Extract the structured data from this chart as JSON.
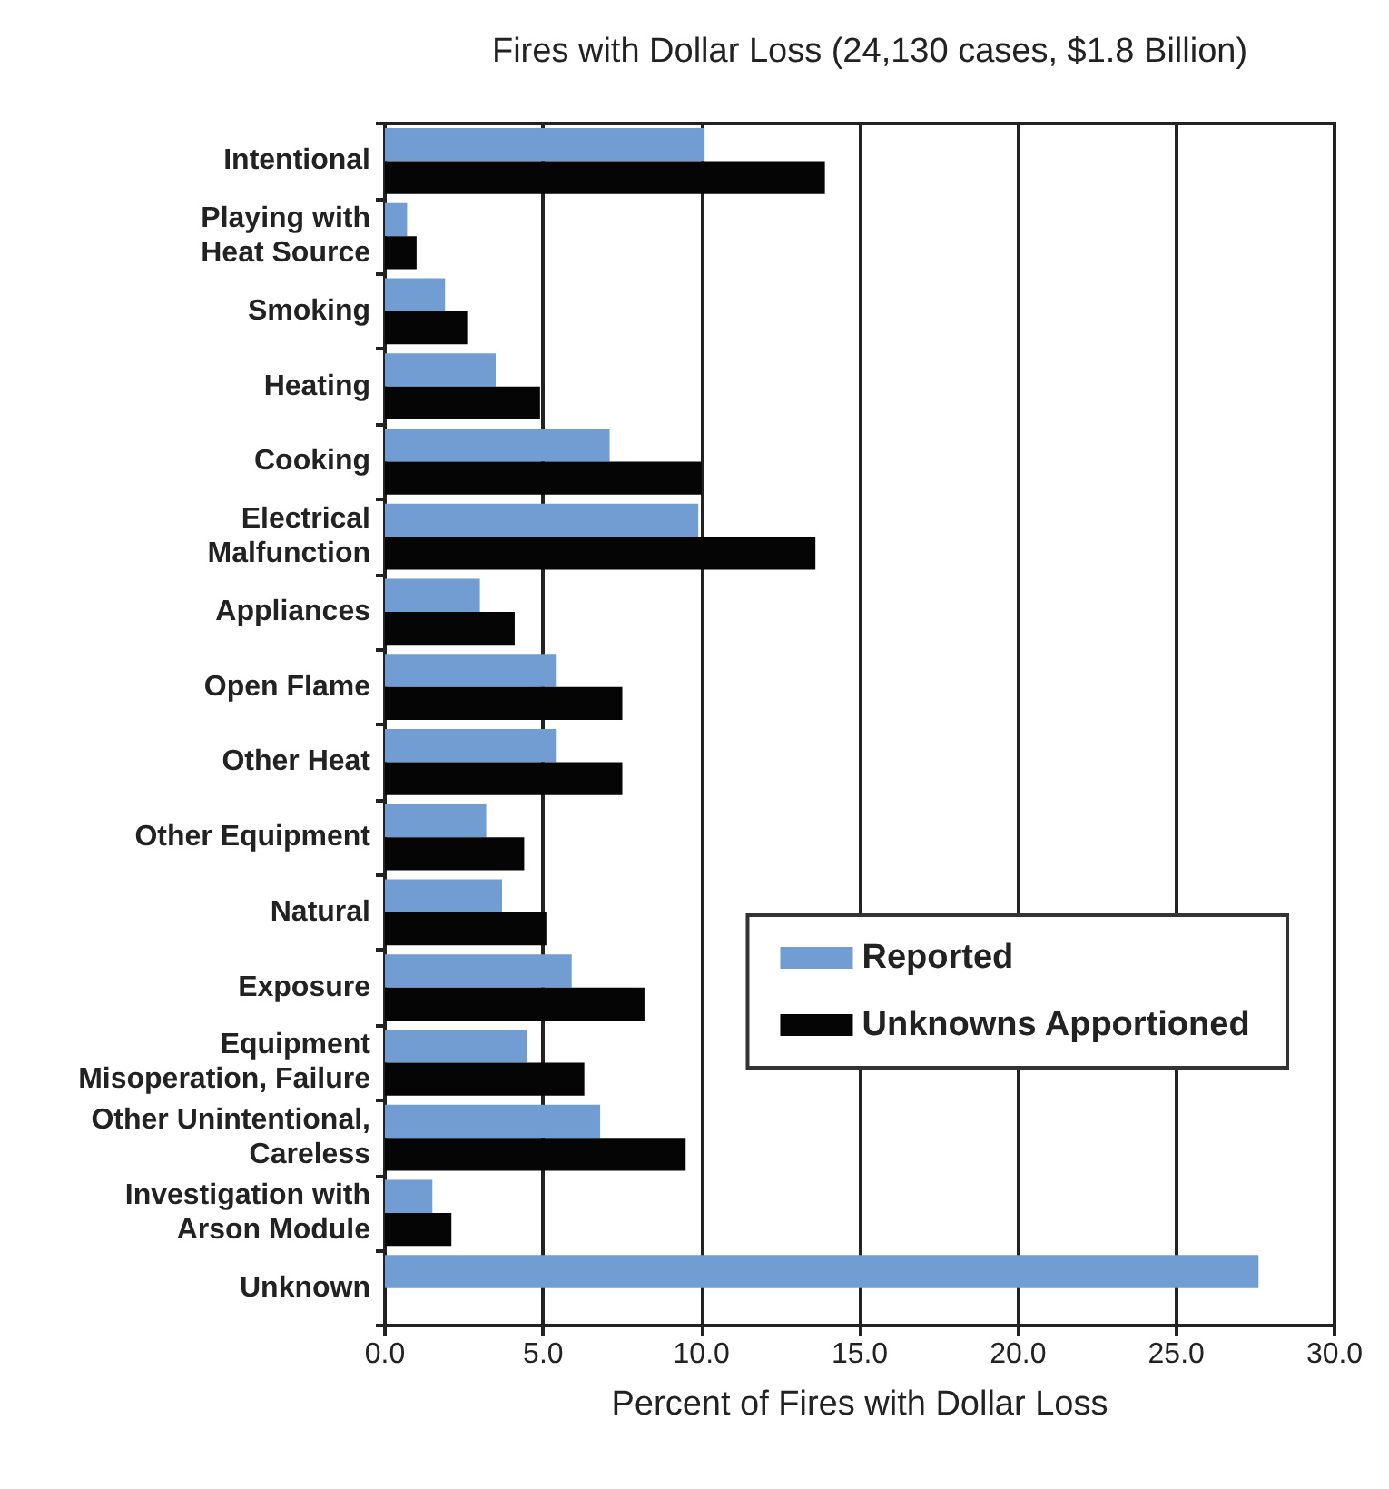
{
  "chart_data": {
    "type": "bar",
    "orientation": "horizontal",
    "title": "Fires with Dollar Loss (24,130 cases, $1.8 Billion)",
    "xlabel": "Percent of Fires with Dollar Loss",
    "categories": [
      "Intentional",
      "Playing with\nHeat Source",
      "Smoking",
      "Heating",
      "Cooking",
      "Electrical\nMalfunction",
      "Appliances",
      "Open Flame",
      "Other Heat",
      "Other Equipment",
      "Natural",
      "Exposure",
      "Equipment\nMisoperation, Failure",
      "Other Unintentional,\nCareless",
      "Investigation with\nArson Module",
      "Unknown"
    ],
    "series": [
      {
        "name": "Reported",
        "color": "#729dd2",
        "values": [
          10.1,
          0.7,
          1.9,
          3.5,
          7.1,
          9.9,
          3.0,
          5.4,
          5.4,
          3.2,
          3.7,
          5.9,
          4.5,
          6.8,
          1.5,
          27.6
        ]
      },
      {
        "name": "Unknowns Apportioned",
        "color": "#050505",
        "values": [
          13.9,
          1.0,
          2.6,
          4.9,
          10.0,
          13.6,
          4.1,
          7.5,
          7.5,
          4.4,
          5.1,
          8.2,
          6.3,
          9.5,
          2.1,
          null
        ]
      }
    ],
    "xlim": [
      0,
      30
    ],
    "xticks": [
      {
        "value": 0,
        "label": "0.0"
      },
      {
        "value": 5,
        "label": "5.0"
      },
      {
        "value": 10,
        "label": "10.0"
      },
      {
        "value": 15,
        "label": "15.0"
      },
      {
        "value": 20,
        "label": "20.0"
      },
      {
        "value": 25,
        "label": "25.0"
      },
      {
        "value": 30,
        "label": "30.0"
      }
    ],
    "grid": "x",
    "legend": "right"
  }
}
